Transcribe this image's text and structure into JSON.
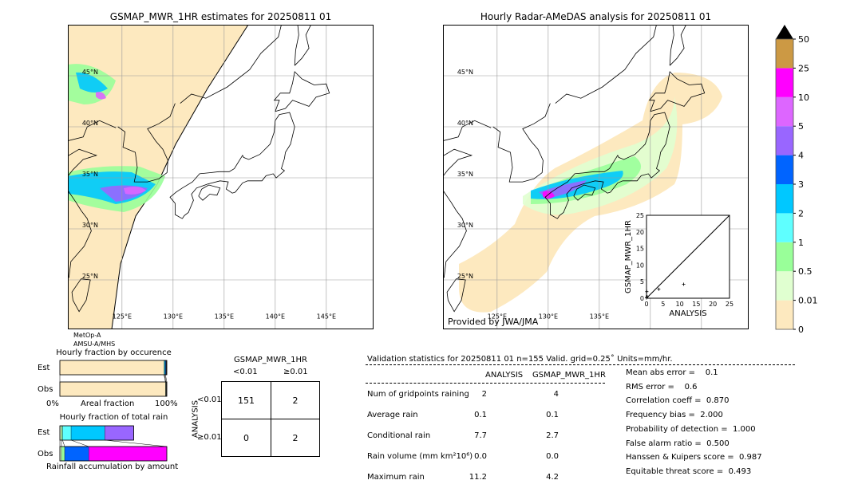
{
  "left_map": {
    "title": "GSMAP_MWR_1HR estimates for 20250811 01",
    "satellite_label_1": "MetOp-A",
    "satellite_label_2": "AMSU-A/MHS",
    "lat_labels": [
      "45°N",
      "40°N",
      "35°N",
      "30°N",
      "25°N"
    ],
    "lon_labels": [
      "125°E",
      "130°E",
      "135°E",
      "140°E",
      "145°E"
    ]
  },
  "right_map": {
    "title": "Hourly Radar-AMeDAS analysis for 20250811 01",
    "credit": "Provided by JWA/JMA",
    "lat_labels": [
      "45°N",
      "40°N",
      "35°N",
      "30°N",
      "25°N"
    ],
    "lon_labels": [
      "125°E",
      "130°E",
      "135°E"
    ]
  },
  "colorbar": {
    "ticks": [
      "0",
      "0.01",
      "0.5",
      "1",
      "2",
      "3",
      "4",
      "5",
      "10",
      "25",
      "50"
    ],
    "colors": [
      "#fde9bf",
      "#e0ffd0",
      "#99ff99",
      "#5fffff",
      "#00c8ff",
      "#0064ff",
      "#9966ff",
      "#dd66ff",
      "#ff00ff",
      "#cc9944"
    ],
    "extend_color": "#000000"
  },
  "chart_data": [
    {
      "type": "scatter",
      "xlabel": "ANALYSIS",
      "ylabel": "GSMAP_MWR_1HR",
      "xlim": [
        0,
        25
      ],
      "ylim": [
        0,
        25
      ],
      "ticks": [
        "0",
        "5",
        "10",
        "15",
        "20",
        "25"
      ],
      "points": [
        [
          0.1,
          2.0
        ],
        [
          0.2,
          0.5
        ],
        [
          3.7,
          2.7
        ],
        [
          11.2,
          4.2
        ],
        [
          0.0,
          0.1
        ]
      ],
      "diagonal": true
    },
    {
      "type": "bar",
      "title": "Hourly fraction by occurence",
      "xlabel": "Areal fraction",
      "x_tick_left": "0%",
      "x_tick_right": "100%",
      "categories": [
        "Est",
        "Obs"
      ],
      "segments": {
        "Est": [
          {
            "color": "#fde9bf",
            "value": 97.4
          },
          {
            "color": "#5fffff",
            "value": 0.6
          },
          {
            "color": "#00c8ff",
            "value": 0.7
          },
          {
            "color": "#0064ff",
            "value": 0.6
          },
          {
            "color": "#333333",
            "value": 0.7
          }
        ],
        "Obs": [
          {
            "color": "#fde9bf",
            "value": 98.7
          },
          {
            "color": "#e0ffd0",
            "value": 0.5
          },
          {
            "color": "#333333",
            "value": 0.8
          }
        ]
      }
    },
    {
      "type": "bar",
      "title": "Hourly fraction of total rain",
      "xlabel": "Rainfall accumulation by amount",
      "categories": [
        "Est",
        "Obs"
      ],
      "segments": {
        "Est": [
          {
            "color": "#e0ffd0",
            "value": 1.5
          },
          {
            "color": "#99ff99",
            "value": 1.0
          },
          {
            "color": "#5fffff",
            "value": 8
          },
          {
            "color": "#00c8ff",
            "value": 31.5
          },
          {
            "color": "#9966ff",
            "value": 27
          }
        ],
        "Obs": [
          {
            "color": "#e0ffd0",
            "value": 1.5
          },
          {
            "color": "#99ff99",
            "value": 3
          },
          {
            "color": "#0064ff",
            "value": 22.5
          },
          {
            "color": "#ff00ff",
            "value": 73
          }
        ]
      }
    }
  ],
  "contingency": {
    "col_title": "GSMAP_MWR_1HR",
    "col_labels": [
      "<0.01",
      "≥0.01"
    ],
    "row_title": "ANALYSIS",
    "row_labels": [
      "<0.01",
      "≥0.01"
    ],
    "cells": [
      [
        "151",
        "2"
      ],
      [
        "0",
        "2"
      ]
    ]
  },
  "stats": {
    "header": "Validation statistics for 20250811 01  n=155 Valid. grid=0.25˚ Units=mm/hr.",
    "col_headers": [
      "ANALYSIS",
      "GSMAP_MWR_1HR"
    ],
    "rows": [
      {
        "label": "Num of gridpoints raining",
        "a": "2",
        "g": "4"
      },
      {
        "label": "Average rain",
        "a": "0.1",
        "g": "0.1"
      },
      {
        "label": "Conditional rain",
        "a": "7.7",
        "g": "2.7"
      },
      {
        "label": "Rain volume (mm km²10⁶)",
        "a": "0.0",
        "g": "0.0"
      },
      {
        "label": "Maximum rain",
        "a": "11.2",
        "g": "4.2"
      }
    ],
    "scores": [
      "Mean abs error =    0.1",
      "RMS error =    0.6",
      "Correlation coeff =  0.870",
      "Frequency bias =  2.000",
      "Probability of detection =  1.000",
      "False alarm ratio =  0.500",
      "Hanssen & Kuipers score =  0.987",
      "Equitable threat score =  0.493"
    ]
  }
}
